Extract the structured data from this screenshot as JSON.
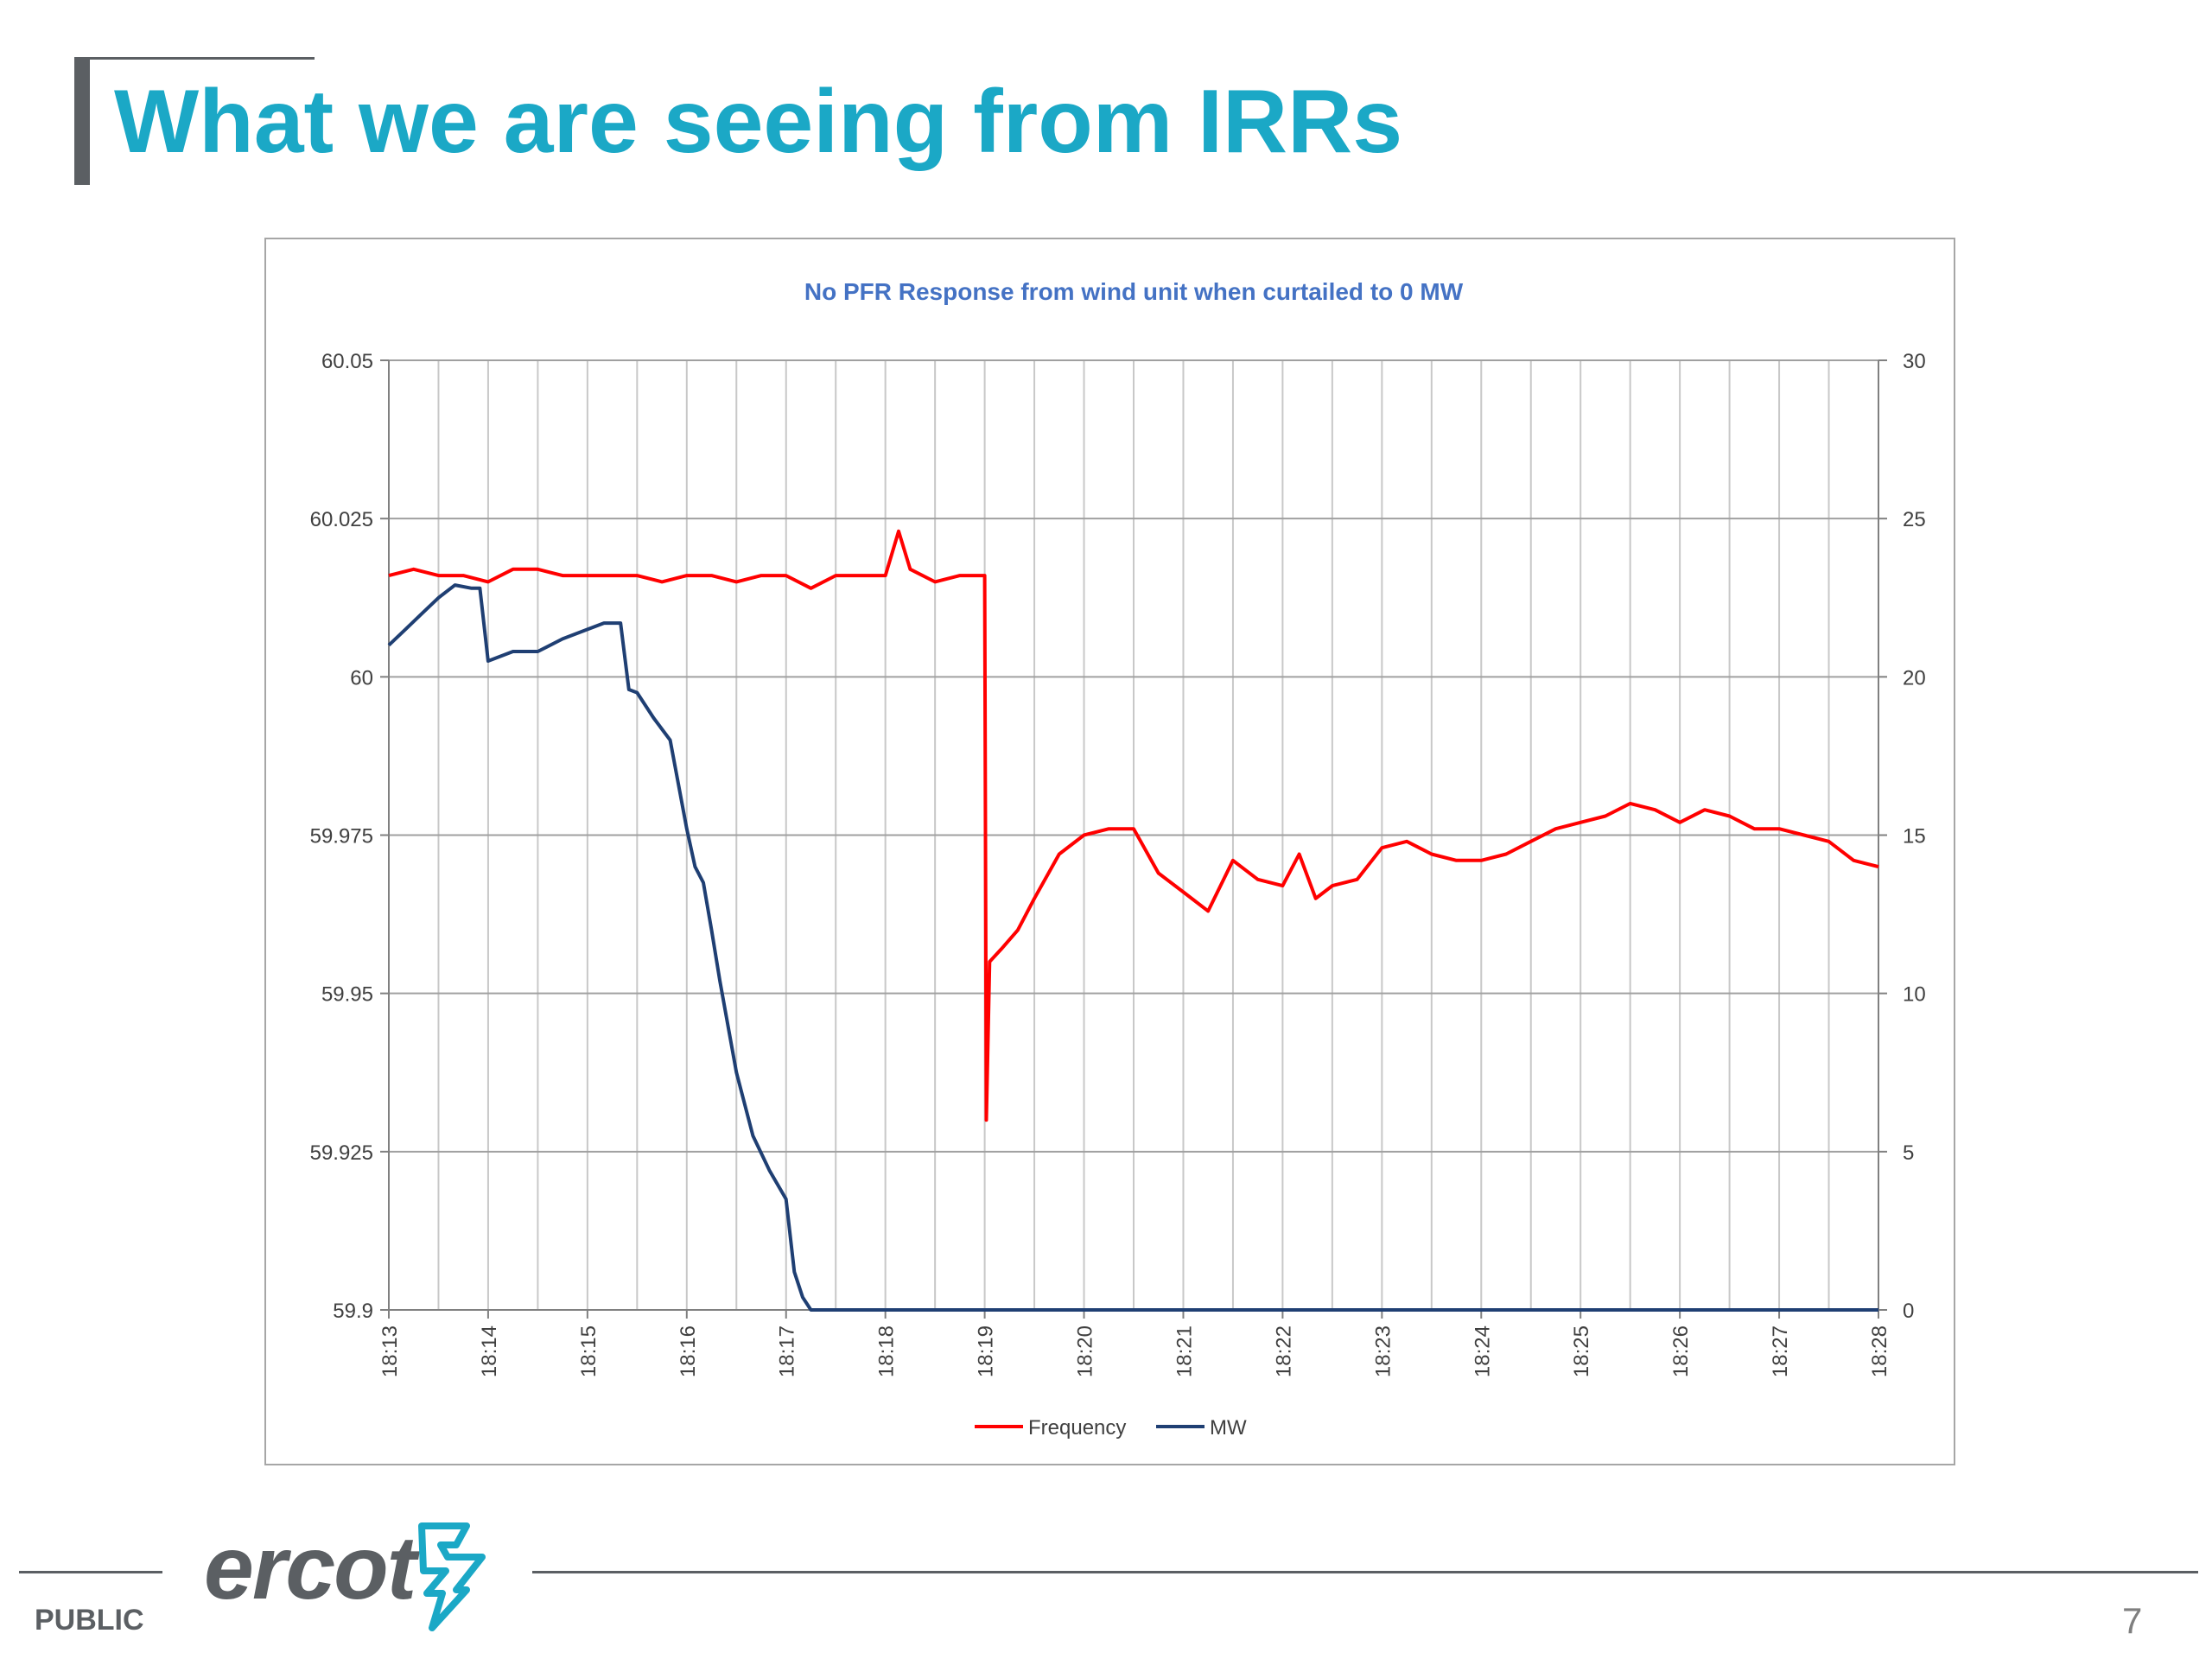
{
  "slide": {
    "title": "What we are seeing from IRRs",
    "footer_label": "PUBLIC",
    "logo_text": "ercot",
    "page_number": "7"
  },
  "colors": {
    "title": "#1ba8c6",
    "frequency": "#ff0000",
    "mw": "#1f3f73",
    "grid": "#c8c8c8",
    "footer": "#5b5f63"
  },
  "chart_data": {
    "type": "line",
    "title": "No PFR Response from wind unit when curtailed to 0 MW",
    "xlabel": "",
    "ylabel_left": "",
    "ylabel_right": "",
    "x_ticks": [
      "18:13",
      "18:14",
      "18:15",
      "18:16",
      "18:17",
      "18:18",
      "18:19",
      "18:20",
      "18:21",
      "18:22",
      "18:23",
      "18:24",
      "18:25",
      "18:26",
      "18:27",
      "18:28"
    ],
    "x_range": [
      "18:13",
      "18:28"
    ],
    "y_left": {
      "min": 59.9,
      "max": 60.05,
      "ticks": [
        "59.9",
        "59.925",
        "59.95",
        "59.975",
        "60",
        "60.025",
        "60.05"
      ]
    },
    "y_right": {
      "min": 0,
      "max": 30,
      "ticks": [
        "0",
        "5",
        "10",
        "15",
        "20",
        "25",
        "30"
      ]
    },
    "grid": true,
    "legend_position": "bottom",
    "series": [
      {
        "name": "Frequency",
        "axis": "left",
        "color": "#ff0000",
        "x": [
          "18:13:00",
          "18:13:15",
          "18:13:30",
          "18:13:45",
          "18:14:00",
          "18:14:15",
          "18:14:30",
          "18:14:45",
          "18:15:00",
          "18:15:15",
          "18:15:30",
          "18:15:45",
          "18:16:00",
          "18:16:15",
          "18:16:30",
          "18:16:45",
          "18:17:00",
          "18:17:15",
          "18:17:30",
          "18:17:45",
          "18:18:00",
          "18:18:08",
          "18:18:15",
          "18:18:30",
          "18:18:45",
          "18:19:00",
          "18:19:01",
          "18:19:03",
          "18:19:10",
          "18:19:20",
          "18:19:30",
          "18:19:45",
          "18:20:00",
          "18:20:15",
          "18:20:30",
          "18:20:45",
          "18:21:00",
          "18:21:15",
          "18:21:30",
          "18:21:45",
          "18:22:00",
          "18:22:10",
          "18:22:20",
          "18:22:30",
          "18:22:45",
          "18:23:00",
          "18:23:15",
          "18:23:30",
          "18:23:45",
          "18:24:00",
          "18:24:15",
          "18:24:30",
          "18:24:45",
          "18:25:00",
          "18:25:15",
          "18:25:30",
          "18:25:45",
          "18:26:00",
          "18:26:15",
          "18:26:30",
          "18:26:45",
          "18:27:00",
          "18:27:15",
          "18:27:30",
          "18:27:45",
          "18:28:00"
        ],
        "y": [
          60.016,
          60.017,
          60.016,
          60.016,
          60.015,
          60.017,
          60.017,
          60.016,
          60.016,
          60.016,
          60.016,
          60.015,
          60.016,
          60.016,
          60.015,
          60.016,
          60.016,
          60.014,
          60.016,
          60.016,
          60.016,
          60.023,
          60.017,
          60.015,
          60.016,
          60.016,
          59.93,
          59.955,
          59.957,
          59.96,
          59.965,
          59.972,
          59.975,
          59.976,
          59.976,
          59.969,
          59.966,
          59.963,
          59.971,
          59.968,
          59.967,
          59.972,
          59.965,
          59.967,
          59.968,
          59.973,
          59.974,
          59.972,
          59.971,
          59.971,
          59.972,
          59.974,
          59.976,
          59.977,
          59.978,
          59.98,
          59.979,
          59.977,
          59.979,
          59.978,
          59.976,
          59.976,
          59.975,
          59.974,
          59.971,
          59.97
        ]
      },
      {
        "name": "MW",
        "axis": "right",
        "color": "#1f3f73",
        "x": [
          "18:13:00",
          "18:13:10",
          "18:13:20",
          "18:13:30",
          "18:13:40",
          "18:13:50",
          "18:13:55",
          "18:14:00",
          "18:14:15",
          "18:14:30",
          "18:14:45",
          "18:15:00",
          "18:15:10",
          "18:15:20",
          "18:15:25",
          "18:15:30",
          "18:15:40",
          "18:15:50",
          "18:16:00",
          "18:16:05",
          "18:16:10",
          "18:16:15",
          "18:16:20",
          "18:16:30",
          "18:16:40",
          "18:16:50",
          "18:17:00",
          "18:17:05",
          "18:17:10",
          "18:17:15",
          "18:19:00",
          "18:28:00"
        ],
        "y": [
          21.0,
          21.5,
          22.0,
          22.5,
          22.9,
          22.8,
          22.8,
          20.5,
          20.8,
          20.8,
          21.2,
          21.5,
          21.7,
          21.7,
          19.6,
          19.5,
          18.7,
          18.0,
          15.2,
          14.0,
          13.5,
          12.0,
          10.4,
          7.5,
          5.5,
          4.4,
          3.5,
          1.2,
          0.4,
          0.0,
          0.0,
          0.0
        ]
      }
    ]
  }
}
